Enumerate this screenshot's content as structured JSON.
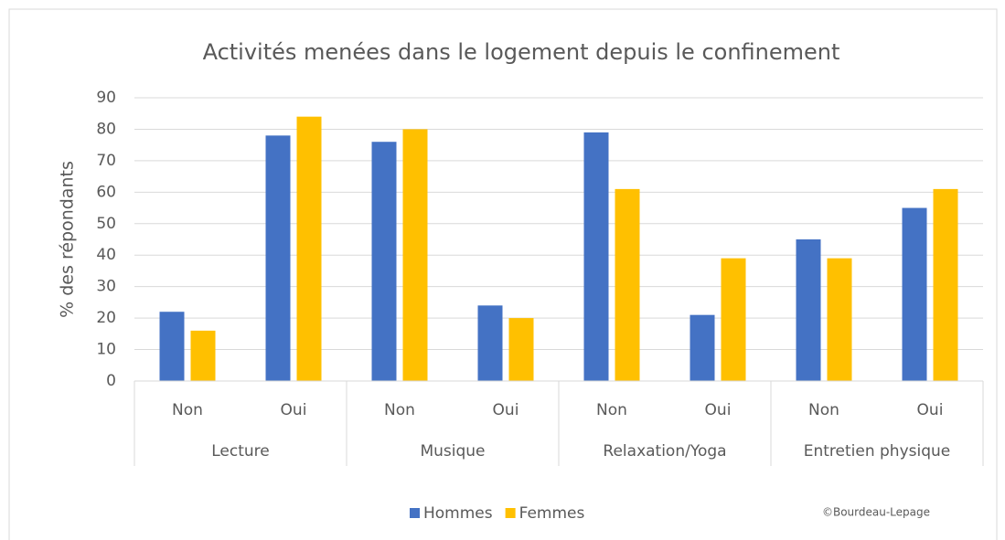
{
  "chart_data": {
    "type": "bar",
    "title": "Activités menées dans le logement depuis le  confinement",
    "y_label": "% des répondants",
    "categories": [
      "Non",
      "Oui",
      "Non",
      "Oui",
      "Non",
      "Oui",
      "Non",
      "Oui"
    ],
    "category_groups": [
      "Lecture",
      "Musique",
      "Relaxation/Yoga",
      "Entretien physique"
    ],
    "series": [
      {
        "name": "Hommes",
        "color": "#4472c4",
        "values": [
          22,
          78,
          76,
          24,
          79,
          21,
          45,
          55
        ]
      },
      {
        "name": "Femmes",
        "color": "#ffc000",
        "values": [
          16,
          84,
          80,
          20,
          61,
          39,
          39,
          61
        ]
      }
    ],
    "ylim": [
      0,
      90
    ],
    "yticks": [
      0,
      10,
      20,
      30,
      40,
      50,
      60,
      70,
      80,
      90
    ],
    "grid": true,
    "legend": "bottom",
    "source": "©Bourdeau-Lepage"
  }
}
